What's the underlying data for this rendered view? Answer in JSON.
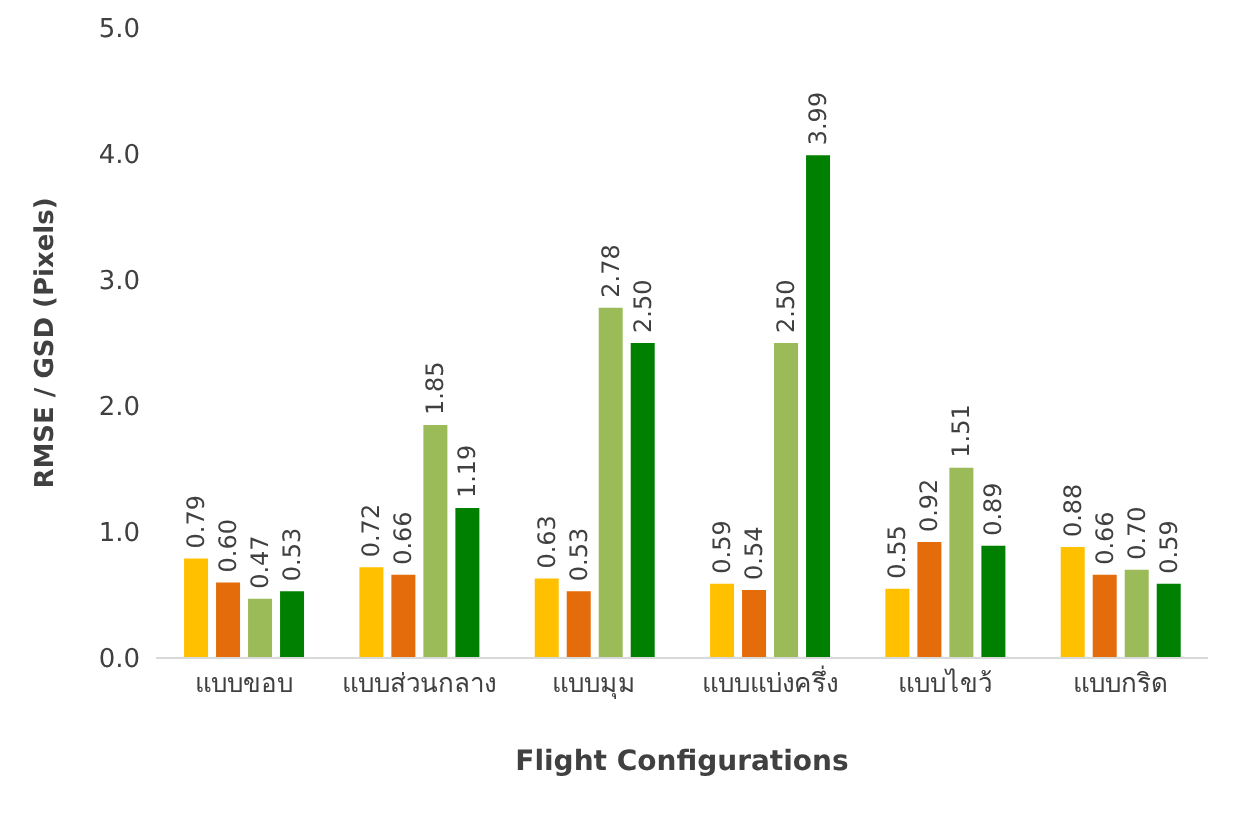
{
  "chart_data": {
    "type": "bar",
    "xlabel": "Flight Configurations",
    "ylabel": "RMSE / GSD (Pixels)",
    "categories": [
      "แบบขอบ",
      "แบบส่วนกลาง",
      "แบบมุม",
      "แบบแบ่งครึ่ง",
      "แบบไขว้",
      "แบบกริด"
    ],
    "series": [
      {
        "color": "#ffc000",
        "values": [
          0.79,
          0.72,
          0.63,
          0.59,
          0.55,
          0.88
        ],
        "value_labels": [
          "0.79",
          "0.72",
          "0.63",
          "0.59",
          "0.55",
          "0.88"
        ]
      },
      {
        "color": "#e46c0a",
        "values": [
          0.6,
          0.66,
          0.53,
          0.54,
          0.92,
          0.66
        ],
        "value_labels": [
          "0.60",
          "0.66",
          "0.53",
          "0.54",
          "0.92",
          "0.66"
        ]
      },
      {
        "color": "#9bbb59",
        "values": [
          0.47,
          1.85,
          2.78,
          2.5,
          1.51,
          0.7
        ],
        "value_labels": [
          "0.47",
          "1.85",
          "2.78",
          "2.50",
          "1.51",
          "0.70"
        ]
      },
      {
        "color": "#008000",
        "values": [
          0.53,
          1.19,
          2.5,
          3.99,
          0.89,
          0.59
        ],
        "value_labels": [
          "0.53",
          "1.19",
          "2.50",
          "3.99",
          "0.89",
          "0.59"
        ]
      }
    ],
    "ylim": [
      0,
      5
    ],
    "yticks": [
      {
        "value": 0,
        "label": "0.0"
      },
      {
        "value": 1,
        "label": "1.0"
      },
      {
        "value": 2,
        "label": "2.0"
      },
      {
        "value": 3,
        "label": "3.0"
      },
      {
        "value": 4,
        "label": "4.0"
      },
      {
        "value": 5,
        "label": "5.0"
      }
    ],
    "grid": false,
    "legend": false
  }
}
